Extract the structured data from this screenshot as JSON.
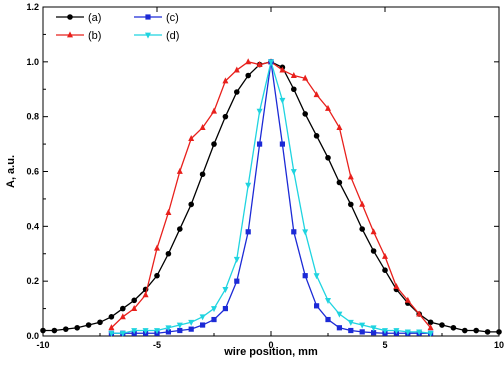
{
  "chart_data": {
    "type": "line",
    "title": "",
    "xlabel": "wire position, mm",
    "ylabel": "A, a.u.",
    "xlim": [
      -10,
      10
    ],
    "ylim": [
      0,
      1.2
    ],
    "x_ticks": [
      -10,
      -5,
      0,
      5,
      10
    ],
    "y_ticks": [
      0.0,
      0.2,
      0.4,
      0.6,
      0.8,
      1.0,
      1.2
    ],
    "x_tick_labels": [
      "-10",
      "-5",
      "0",
      "5",
      "10"
    ],
    "y_tick_labels": [
      "0.0",
      "0.2",
      "0.4",
      "0.6",
      "0.8",
      "1.0",
      "1.2"
    ],
    "grid": false,
    "legend_position": "top-left",
    "series": [
      {
        "name": "(a)",
        "color": "#000000",
        "marker": "circle",
        "x": [
          -10,
          -9.5,
          -9,
          -8.5,
          -8,
          -7.5,
          -7,
          -6.5,
          -6,
          -5.5,
          -5,
          -4.5,
          -4,
          -3.5,
          -3,
          -2.5,
          -2,
          -1.5,
          -1,
          -0.5,
          0,
          0.5,
          1,
          1.5,
          2,
          2.5,
          3,
          3.5,
          4,
          4.5,
          5,
          5.5,
          6,
          6.5,
          7,
          7.5,
          8,
          8.5,
          9,
          9.5,
          10
        ],
        "y": [
          0.02,
          0.02,
          0.025,
          0.03,
          0.04,
          0.05,
          0.07,
          0.1,
          0.13,
          0.17,
          0.22,
          0.3,
          0.39,
          0.48,
          0.59,
          0.7,
          0.8,
          0.89,
          0.95,
          0.99,
          1.0,
          0.98,
          0.9,
          0.81,
          0.73,
          0.65,
          0.56,
          0.48,
          0.39,
          0.31,
          0.24,
          0.17,
          0.12,
          0.08,
          0.05,
          0.04,
          0.03,
          0.02,
          0.02,
          0.015,
          0.015
        ]
      },
      {
        "name": "(b)",
        "color": "#e8201c",
        "marker": "triangle-up",
        "x": [
          -7,
          -6.5,
          -6,
          -5.5,
          -5,
          -4.5,
          -4,
          -3.5,
          -3,
          -2.5,
          -2,
          -1.5,
          -1,
          -0.5,
          0,
          0.5,
          1,
          1.5,
          2,
          2.5,
          3,
          3.5,
          4,
          4.5,
          5,
          5.5,
          6,
          6.5,
          7
        ],
        "y": [
          0.03,
          0.07,
          0.1,
          0.15,
          0.32,
          0.45,
          0.6,
          0.72,
          0.76,
          0.82,
          0.93,
          0.97,
          1.0,
          0.99,
          1.0,
          0.97,
          0.95,
          0.94,
          0.88,
          0.83,
          0.76,
          0.58,
          0.48,
          0.38,
          0.29,
          0.18,
          0.13,
          0.08,
          0.03
        ]
      },
      {
        "name": "(c)",
        "color": "#1c2ad6",
        "marker": "square",
        "x": [
          -7,
          -6.5,
          -6,
          -5.5,
          -5,
          -4.5,
          -4,
          -3.5,
          -3,
          -2.5,
          -2,
          -1.5,
          -1,
          -0.5,
          0,
          0.5,
          1,
          1.5,
          2,
          2.5,
          3,
          3.5,
          4,
          4.5,
          5,
          5.5,
          6,
          6.5,
          7
        ],
        "y": [
          0.01,
          0.01,
          0.01,
          0.01,
          0.01,
          0.015,
          0.02,
          0.025,
          0.04,
          0.06,
          0.1,
          0.2,
          0.38,
          0.7,
          1.0,
          0.7,
          0.38,
          0.22,
          0.11,
          0.06,
          0.03,
          0.02,
          0.015,
          0.012,
          0.01,
          0.01,
          0.01,
          0.01,
          0.01
        ]
      },
      {
        "name": "(d)",
        "color": "#1fd4e0",
        "marker": "triangle-down",
        "x": [
          -7,
          -6.5,
          -6,
          -5.5,
          -5,
          -4.5,
          -4,
          -3.5,
          -3,
          -2.5,
          -2,
          -1.5,
          -1,
          -0.5,
          0,
          0.5,
          1,
          1.5,
          2,
          2.5,
          3,
          3.5,
          4,
          4.5,
          5,
          5.5,
          6,
          6.5,
          7
        ],
        "y": [
          0.01,
          0.01,
          0.02,
          0.02,
          0.02,
          0.03,
          0.04,
          0.05,
          0.07,
          0.1,
          0.17,
          0.28,
          0.55,
          0.82,
          1.0,
          0.86,
          0.6,
          0.38,
          0.22,
          0.13,
          0.08,
          0.05,
          0.04,
          0.03,
          0.02,
          0.02,
          0.015,
          0.015,
          0.01
        ]
      }
    ]
  }
}
